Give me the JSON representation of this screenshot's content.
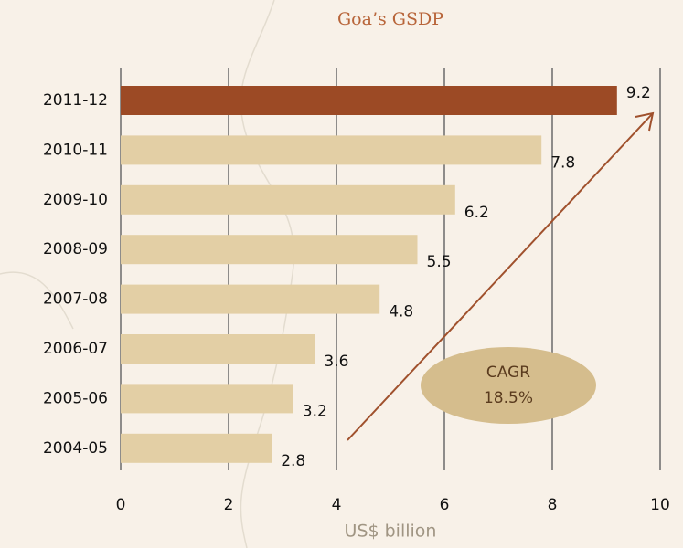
{
  "chart_data": {
    "type": "hbar",
    "title": "Goa’s GSDP",
    "categories": [
      "2011-12",
      "2010-11",
      "2009-10",
      "2008-09",
      "2007-08",
      "2006-07",
      "2005-06",
      "2004-05"
    ],
    "values": [
      9.2,
      7.8,
      6.2,
      5.5,
      4.8,
      3.6,
      3.2,
      2.8
    ],
    "colors": [
      "#9c4a25",
      "#e3cfa5",
      "#e3cfa5",
      "#e3cfa5",
      "#e3cfa5",
      "#e3cfa5",
      "#e3cfa5",
      "#e3cfa5"
    ],
    "xlim": [
      0,
      10
    ],
    "xticks": [
      0,
      2,
      4,
      6,
      8,
      10
    ],
    "grid": true,
    "xlabel": "US$ billion",
    "annotation": {
      "lines": [
        "CAGR",
        "18.5%"
      ]
    }
  }
}
